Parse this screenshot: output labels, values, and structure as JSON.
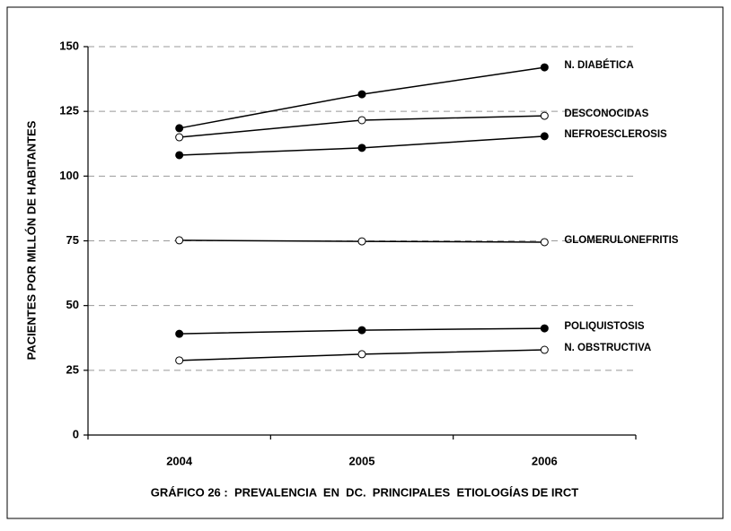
{
  "chart_data": {
    "type": "line",
    "title": "GRÁFICO 26 :  PREVALENCIA  EN  DC.  PRINCIPALES  ETIOLOGÍAS DE IRCT",
    "y_label": "PACIENTES POR MILLÓN DE HABITANTES",
    "categories": [
      "2004",
      "2005",
      "2006"
    ],
    "ylim": [
      0,
      150
    ],
    "yticks": [
      0,
      25,
      50,
      75,
      100,
      125,
      150
    ],
    "grid": true,
    "series": [
      {
        "name": "N. DIABÉTICA",
        "color": "#000000",
        "marker": "filled",
        "values": [
          118.5,
          131.6,
          142.0
        ]
      },
      {
        "name": "DESCONOCIDAS",
        "color": "#000000",
        "marker": "open",
        "values": [
          115.0,
          121.6,
          123.3
        ]
      },
      {
        "name": "NEFROESCLEROSIS",
        "color": "#000000",
        "marker": "filled",
        "values": [
          108.1,
          110.9,
          115.4
        ]
      },
      {
        "name": "GLOMERULONEFRITIS",
        "color": "#000000",
        "marker": "open",
        "values": [
          75.2,
          74.8,
          74.5
        ]
      },
      {
        "name": "POLIQUISTOSIS",
        "color": "#000000",
        "marker": "filled",
        "values": [
          39.1,
          40.5,
          41.2
        ]
      },
      {
        "name": "N. OBSTRUCTIVA",
        "color": "#000000",
        "marker": "open",
        "values": [
          28.8,
          31.2,
          32.9
        ]
      }
    ]
  }
}
